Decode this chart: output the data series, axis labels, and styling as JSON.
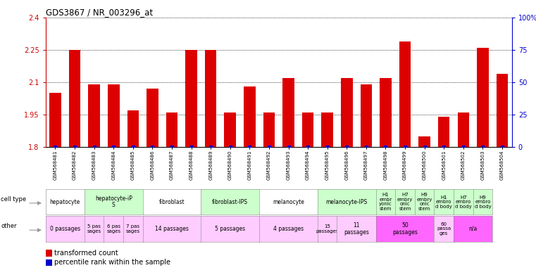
{
  "title": "GDS3867 / NR_003296_at",
  "samples": [
    "GSM568481",
    "GSM568482",
    "GSM568483",
    "GSM568484",
    "GSM568485",
    "GSM568486",
    "GSM568487",
    "GSM568488",
    "GSM568489",
    "GSM568490",
    "GSM568491",
    "GSM568492",
    "GSM568493",
    "GSM568494",
    "GSM568495",
    "GSM568496",
    "GSM568497",
    "GSM568498",
    "GSM568499",
    "GSM568500",
    "GSM568501",
    "GSM568502",
    "GSM568503",
    "GSM568504"
  ],
  "values": [
    2.05,
    2.25,
    2.09,
    2.09,
    1.97,
    2.07,
    1.96,
    2.25,
    2.25,
    1.96,
    2.08,
    1.96,
    2.12,
    1.96,
    1.96,
    2.12,
    2.09,
    2.12,
    2.29,
    1.85,
    1.94,
    1.96,
    2.26,
    2.14
  ],
  "ylim_left": [
    1.8,
    2.4
  ],
  "yticks_left": [
    1.8,
    1.95,
    2.1,
    2.25,
    2.4
  ],
  "ytick_labels_left": [
    "1.8",
    "1.95",
    "2.1",
    "2.25",
    "2.4"
  ],
  "ylim_right": [
    0,
    100
  ],
  "yticks_right": [
    0,
    25,
    50,
    75,
    100
  ],
  "ytick_labels_right": [
    "0",
    "25",
    "50",
    "75",
    "100%"
  ],
  "bar_color": "#dd0000",
  "blue_marker_color": "#0000cc",
  "bar_baseline": 1.8,
  "tick_label_color_left": "#cc0000",
  "tick_label_color_right": "#0000cc",
  "cell_groups": [
    {
      "label": "hepatocyte",
      "start": 0,
      "end": 1,
      "color": "#ffffff"
    },
    {
      "label": "hepatocyte-iP\nS",
      "start": 2,
      "end": 4,
      "color": "#ccffcc"
    },
    {
      "label": "fibroblast",
      "start": 5,
      "end": 7,
      "color": "#ffffff"
    },
    {
      "label": "fibroblast-IPS",
      "start": 8,
      "end": 10,
      "color": "#ccffcc"
    },
    {
      "label": "melanocyte",
      "start": 11,
      "end": 13,
      "color": "#ffffff"
    },
    {
      "label": "melanocyte-IPS",
      "start": 14,
      "end": 16,
      "color": "#ccffcc"
    },
    {
      "label": "H1\nembr\nyonic\nstem",
      "start": 17,
      "end": 17,
      "color": "#ccffcc"
    },
    {
      "label": "H7\nembry\nonic\nstem",
      "start": 18,
      "end": 18,
      "color": "#ccffcc"
    },
    {
      "label": "H9\nembry\nonic\nstem",
      "start": 19,
      "end": 19,
      "color": "#ccffcc"
    },
    {
      "label": "H1\nembro\nd body",
      "start": 20,
      "end": 20,
      "color": "#ccffcc"
    },
    {
      "label": "H7\nembro\nd body",
      "start": 21,
      "end": 21,
      "color": "#ccffcc"
    },
    {
      "label": "H9\nembro\nd body",
      "start": 22,
      "end": 22,
      "color": "#ccffcc"
    }
  ],
  "other_groups": [
    {
      "label": "0 passages",
      "start": 0,
      "end": 1,
      "color": "#ffccff"
    },
    {
      "label": "5 pas\nsages",
      "start": 2,
      "end": 2,
      "color": "#ffccff"
    },
    {
      "label": "6 pas\nsages",
      "start": 3,
      "end": 3,
      "color": "#ffccff"
    },
    {
      "label": "7 pas\nsages",
      "start": 4,
      "end": 4,
      "color": "#ffccff"
    },
    {
      "label": "14 passages",
      "start": 5,
      "end": 7,
      "color": "#ffccff"
    },
    {
      "label": "5 passages",
      "start": 8,
      "end": 10,
      "color": "#ffccff"
    },
    {
      "label": "4 passages",
      "start": 11,
      "end": 13,
      "color": "#ffccff"
    },
    {
      "label": "15\npassages",
      "start": 14,
      "end": 14,
      "color": "#ffccff"
    },
    {
      "label": "11\npassages",
      "start": 15,
      "end": 16,
      "color": "#ffccff"
    },
    {
      "label": "50\npassages",
      "start": 17,
      "end": 19,
      "color": "#ff66ff"
    },
    {
      "label": "60\npassa\nges",
      "start": 20,
      "end": 20,
      "color": "#ffccff"
    },
    {
      "label": "n/a",
      "start": 21,
      "end": 22,
      "color": "#ff66ff"
    }
  ]
}
